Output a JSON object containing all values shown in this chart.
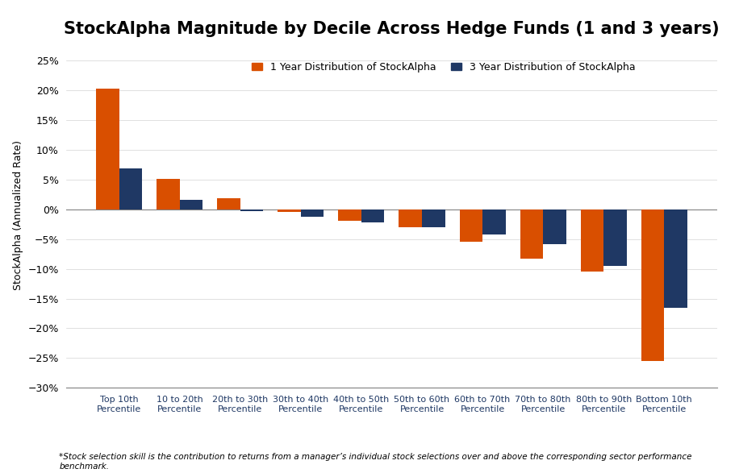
{
  "title": "StockAlpha Magnitude by Decile Across Hedge Funds (1 and 3 years)",
  "ylabel": "StockAlpha (Annualized Rate)",
  "categories": [
    "Top 10th\nPercentile",
    "10 to 20th\nPercentile",
    "20th to 30th\nPercentile",
    "30th to 40th\nPercentile",
    "40th to 50th\nPercentile",
    "50th to 60th\nPercentile",
    "60th to 70th\nPercentile",
    "70th to 80th\nPercentile",
    "80th to 90th\nPercentile",
    "Bottom 10th\nPercentile"
  ],
  "values_1yr": [
    0.203,
    0.051,
    0.018,
    -0.005,
    -0.02,
    -0.03,
    -0.055,
    -0.083,
    -0.105,
    -0.255
  ],
  "values_3yr": [
    0.068,
    0.016,
    -0.003,
    -0.012,
    -0.022,
    -0.03,
    -0.043,
    -0.058,
    -0.095,
    -0.165
  ],
  "color_1yr": "#D94F00",
  "color_3yr": "#1F3864",
  "legend_1yr": "1 Year Distribution of StockAlpha",
  "legend_3yr": "3 Year Distribution of StockAlpha",
  "ylim_min": -0.3,
  "ylim_max": 0.28,
  "yticks": [
    -0.3,
    -0.25,
    -0.2,
    -0.15,
    -0.1,
    -0.05,
    0.0,
    0.05,
    0.1,
    0.15,
    0.2,
    0.25
  ],
  "footnote": "*Stock selection skill is the contribution to returns from a manager’s individual stock selections over and above the corresponding sector performance\nbenchmark.",
  "background_color": "#FFFFFF",
  "title_fontsize": 15,
  "label_fontsize": 9,
  "tick_fontsize": 9,
  "xtick_fontsize": 8,
  "bar_width": 0.38
}
